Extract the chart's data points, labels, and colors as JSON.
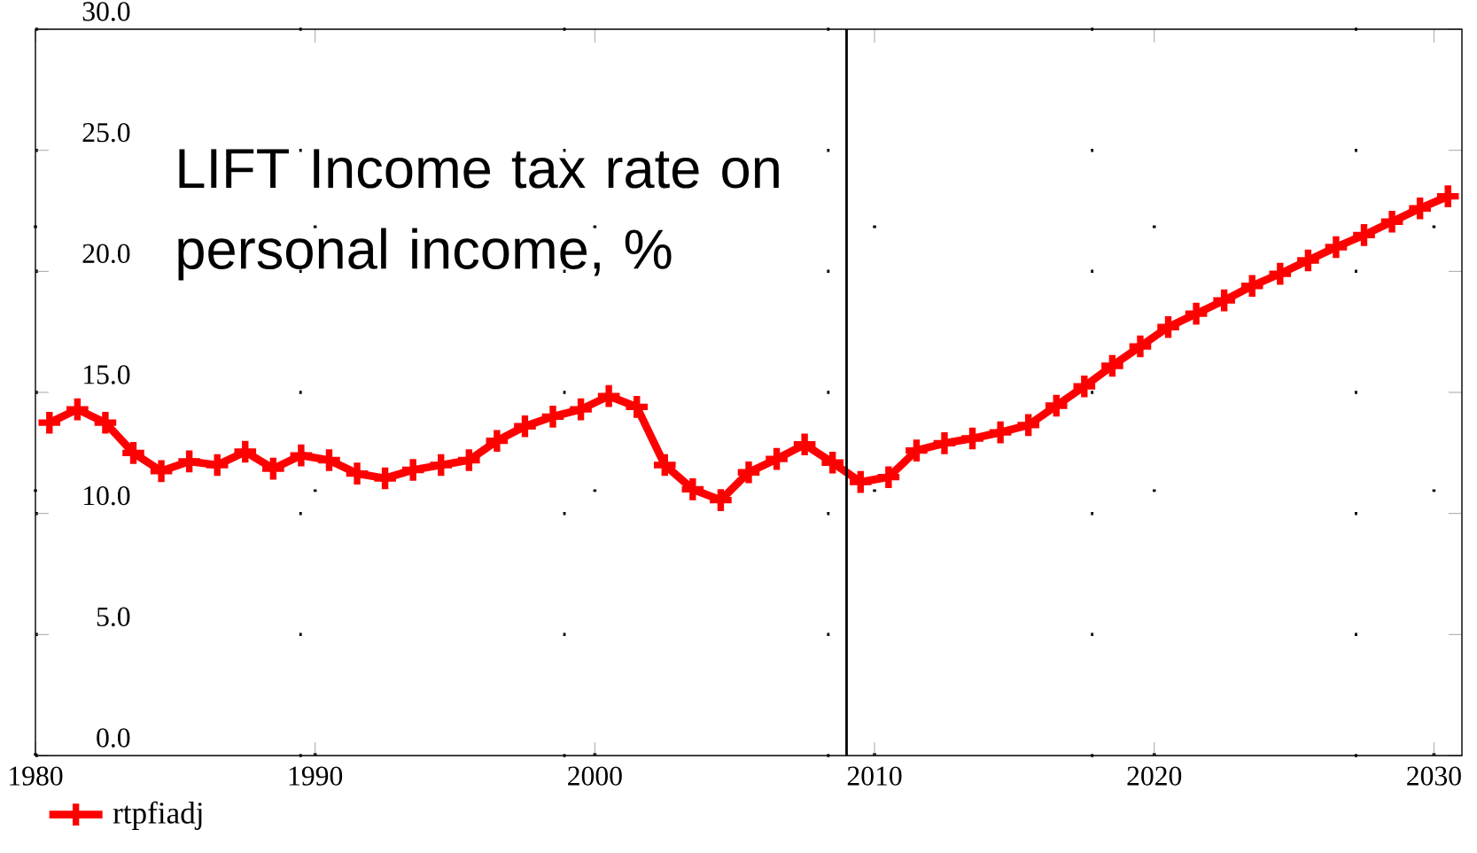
{
  "chart_data": {
    "type": "line",
    "title": "LIFT Income tax rate on personal income, %",
    "x": [
      1980.5,
      1981.5,
      1982.5,
      1983.5,
      1984.5,
      1985.5,
      1986.5,
      1987.5,
      1988.5,
      1989.5,
      1990.5,
      1991.5,
      1992.5,
      1993.5,
      1994.5,
      1995.5,
      1996.5,
      1997.5,
      1998.5,
      1999.5,
      2000.5,
      2001.5,
      2002.5,
      2003.5,
      2004.5,
      2005.5,
      2006.5,
      2007.5,
      2008.5,
      2009.5,
      2010.5,
      2011.5,
      2012.5,
      2013.5,
      2014.5,
      2015.5,
      2016.5,
      2017.5,
      2018.5,
      2019.5,
      2020.5,
      2021.5,
      2022.5,
      2023.5,
      2024.5,
      2025.5,
      2026.5,
      2027.5,
      2028.5,
      2029.5,
      2030.5
    ],
    "series": [
      {
        "name": "rtpfiadj",
        "color": "#ff0000",
        "values": [
          13.75,
          14.3,
          13.75,
          12.5,
          11.75,
          12.15,
          12.0,
          12.55,
          11.85,
          12.4,
          12.2,
          11.65,
          11.45,
          11.8,
          12.0,
          12.2,
          13.0,
          13.6,
          14.0,
          14.3,
          14.85,
          14.4,
          12.0,
          11.0,
          10.55,
          11.7,
          12.25,
          12.85,
          12.1,
          11.3,
          11.5,
          12.6,
          12.9,
          13.1,
          13.35,
          13.65,
          14.45,
          15.25,
          16.1,
          16.9,
          17.7,
          18.25,
          18.8,
          19.4,
          19.9,
          20.45,
          21.0,
          21.5,
          22.05,
          22.6,
          23.1
        ]
      }
    ],
    "xlim": [
      1980,
      2031
    ],
    "xticks": [
      1980,
      1990,
      2000,
      2010,
      2020,
      2030
    ],
    "ylim": [
      0,
      30
    ],
    "yticks": [
      {
        "value": 0,
        "label": "0.0"
      },
      {
        "value": 5,
        "label": "5.0"
      },
      {
        "value": 10,
        "label": "10.0"
      },
      {
        "value": 15,
        "label": "15.0"
      },
      {
        "value": 20,
        "label": "20.0"
      },
      {
        "value": 25,
        "label": "25.0"
      },
      {
        "value": 30,
        "label": "30.0"
      }
    ],
    "ref_lines": [
      {
        "axis": "x",
        "value": 2009,
        "color": "#000000"
      }
    ],
    "grid": true,
    "legend": "bottom left",
    "marker": "cross",
    "line_style": "solid"
  }
}
